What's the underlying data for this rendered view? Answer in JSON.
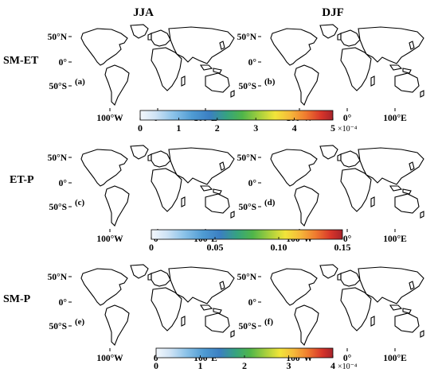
{
  "chart_data": {
    "type": "heatmap",
    "columns": [
      "JJA",
      "DJF"
    ],
    "rows": [
      {
        "label": "SM-ET",
        "panels": [
          {
            "tag": "(a)",
            "season": "JJA"
          },
          {
            "tag": "(b)",
            "season": "DJF"
          }
        ],
        "colorbar": {
          "ticks": [
            "0",
            "1",
            "2",
            "3",
            "4",
            "5"
          ],
          "min": 0,
          "max": 5,
          "multiplier": "×10⁻⁴"
        }
      },
      {
        "label": "ET-P",
        "panels": [
          {
            "tag": "(c)",
            "season": "JJA"
          },
          {
            "tag": "(d)",
            "season": "DJF"
          }
        ],
        "colorbar": {
          "ticks": [
            "0",
            "0.05",
            "0.10",
            "0.15"
          ],
          "min": 0,
          "max": 0.15,
          "multiplier": ""
        }
      },
      {
        "label": "SM-P",
        "panels": [
          {
            "tag": "(e)",
            "season": "JJA"
          },
          {
            "tag": "(f)",
            "season": "DJF"
          }
        ],
        "colorbar": {
          "ticks": [
            "0",
            "1",
            "2",
            "3",
            "4"
          ],
          "min": 0,
          "max": 4,
          "multiplier": "×10⁻⁴"
        }
      }
    ],
    "map_ticks": {
      "lat": [
        "50°N",
        "0°",
        "50°S"
      ],
      "lon": [
        "100°W",
        "0°",
        "100°E"
      ]
    },
    "colormap": [
      "#f4f8fd",
      "#cfe3f5",
      "#8cc3e9",
      "#4f9bd3",
      "#3b7fc2",
      "#36a37f",
      "#4fb54a",
      "#a6cf3d",
      "#f2e53a",
      "#f5b83a",
      "#ef7a2f",
      "#d7352a",
      "#a6232b"
    ]
  }
}
